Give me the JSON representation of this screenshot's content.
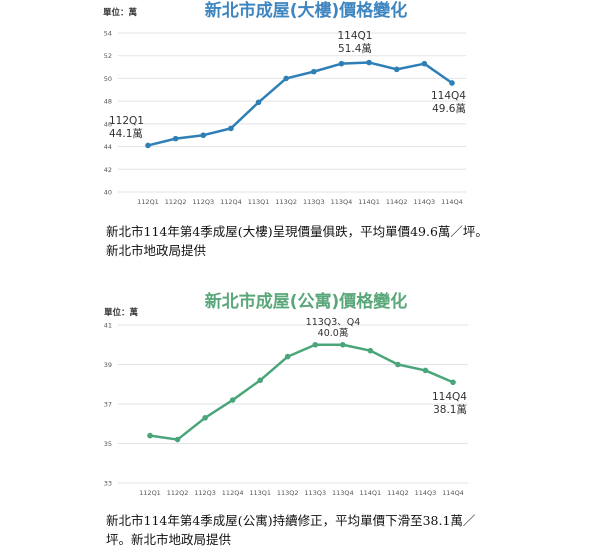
{
  "chart_data": [
    {
      "type": "line",
      "title": "新北市成屋(大樓)價格變化",
      "unit_label": "單位：萬",
      "xlabel": "",
      "ylabel": "單位：萬",
      "categories": [
        "112Q1",
        "112Q2",
        "112Q3",
        "112Q4",
        "113Q1",
        "113Q2",
        "113Q3",
        "113Q4",
        "114Q1",
        "114Q2",
        "114Q3",
        "114Q4"
      ],
      "series": [
        {
          "name": "大樓",
          "values": [
            44.1,
            44.7,
            45.0,
            45.6,
            47.9,
            50.0,
            50.6,
            51.3,
            51.4,
            50.8,
            51.3,
            49.6
          ],
          "color": "#2f7fb7"
        }
      ],
      "ylim": [
        40,
        54
      ],
      "yticks": [
        40,
        42,
        44,
        46,
        48,
        50,
        52,
        54
      ],
      "grid": true,
      "annotations": [
        {
          "point": "112Q1",
          "line1": "112Q1",
          "line2": "44.1萬"
        },
        {
          "point": "114Q1",
          "line1": "114Q1",
          "line2": "51.4萬"
        },
        {
          "point": "114Q4",
          "line1": "114Q4",
          "line2": "49.6萬"
        }
      ],
      "title_color": "#3f86c0"
    },
    {
      "type": "line",
      "title": "新北市成屋(公寓)價格變化",
      "unit_label": "單位：萬",
      "xlabel": "",
      "ylabel": "單位：萬",
      "categories": [
        "112Q1",
        "112Q2",
        "112Q3",
        "112Q4",
        "113Q1",
        "113Q2",
        "113Q3",
        "113Q4",
        "114Q1",
        "114Q2",
        "114Q3",
        "114Q4"
      ],
      "series": [
        {
          "name": "公寓",
          "values": [
            35.4,
            35.2,
            36.3,
            37.2,
            38.2,
            39.4,
            40.0,
            40.0,
            39.7,
            39.0,
            38.7,
            38.1
          ],
          "color": "#4aa57a"
        }
      ],
      "ylim": [
        33,
        41
      ],
      "yticks": [
        33,
        35,
        37,
        39,
        41
      ],
      "grid": true,
      "annotations": [
        {
          "point": "113Q3",
          "line1": "113Q3、Q4",
          "line2": "40.0萬"
        },
        {
          "point": "114Q4",
          "line1": "114Q4",
          "line2": "38.1萬"
        }
      ],
      "title_color": "#5aa77a"
    }
  ],
  "captions": [
    {
      "line1": "新北市114年第4季成屋(大樓)呈現價量俱跌，平均單價49.6萬／坪。",
      "line2": "新北市地政局提供"
    },
    {
      "line1": "新北市114年第4季成屋(公寓)持續修正，平均單價下滑至38.1萬／",
      "line2": "坪。新北市地政局提供"
    }
  ]
}
